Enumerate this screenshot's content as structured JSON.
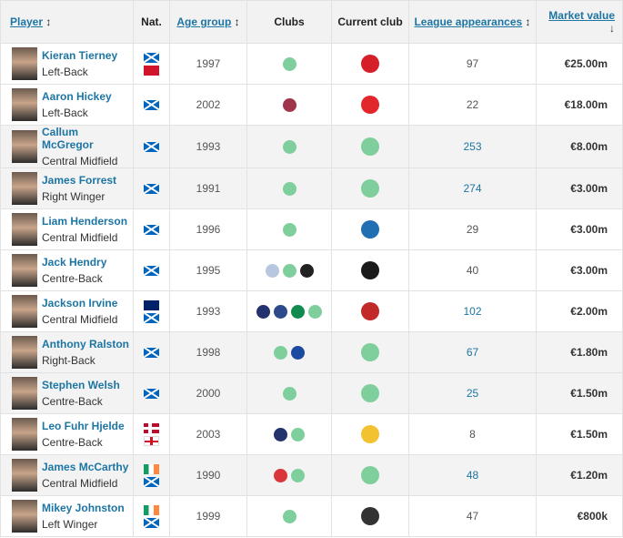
{
  "headers": {
    "player": "Player",
    "nat": "Nat.",
    "age": "Age group",
    "clubs": "Clubs",
    "current": "Current club",
    "apps": "League appearances",
    "value": "Market value",
    "sort_both": "↕",
    "sort_down": "↓"
  },
  "colors": {
    "link": "#1d75a3",
    "celtic": "#2e9e5b"
  },
  "rows": [
    {
      "name": "Kieran Tierney",
      "pos": "Left-Back",
      "flags": [
        "sco",
        "imn"
      ],
      "year": "1997",
      "clubs": [
        "#7fcf9c"
      ],
      "current": "#d5202a",
      "apps": "97",
      "value": "€25.00m",
      "hl": false,
      "blue": false
    },
    {
      "name": "Aaron Hickey",
      "pos": "Left-Back",
      "flags": [
        "sco"
      ],
      "year": "2002",
      "clubs": [
        "#a0344a"
      ],
      "current": "#e3262b",
      "apps": "22",
      "value": "€18.00m",
      "hl": false,
      "blue": false
    },
    {
      "name": "Callum McGregor",
      "pos": "Central Midfield",
      "flags": [
        "sco"
      ],
      "year": "1993",
      "clubs": [
        "#7fcf9c"
      ],
      "current": "#7fcf9c",
      "apps": "253",
      "value": "€8.00m",
      "hl": true,
      "blue": true
    },
    {
      "name": "James Forrest",
      "pos": "Right Winger",
      "flags": [
        "sco"
      ],
      "year": "1991",
      "clubs": [
        "#7fcf9c"
      ],
      "current": "#7fcf9c",
      "apps": "274",
      "value": "€3.00m",
      "hl": true,
      "blue": true
    },
    {
      "name": "Liam Henderson",
      "pos": "Central Midfield",
      "flags": [
        "sco"
      ],
      "year": "1996",
      "clubs": [
        "#7fcf9c"
      ],
      "current": "#1f6fb2",
      "apps": "29",
      "value": "€3.00m",
      "hl": false,
      "blue": false
    },
    {
      "name": "Jack Hendry",
      "pos": "Centre-Back",
      "flags": [
        "sco"
      ],
      "year": "1995",
      "clubs": [
        "#b9c6e0",
        "#7fcf9c",
        "#222222"
      ],
      "current": "#1b1b1b",
      "apps": "40",
      "value": "€3.00m",
      "hl": false,
      "blue": false
    },
    {
      "name": "Jackson Irvine",
      "pos": "Central Midfield",
      "flags": [
        "aus",
        "sco"
      ],
      "year": "1993",
      "clubs": [
        "#24326e",
        "#2c4a8c",
        "#118a4d",
        "#7fcf9c"
      ],
      "current": "#c22a2a",
      "apps": "102",
      "value": "€2.00m",
      "hl": false,
      "blue": true
    },
    {
      "name": "Anthony Ralston",
      "pos": "Right-Back",
      "flags": [
        "sco"
      ],
      "year": "1998",
      "clubs": [
        "#7fcf9c",
        "#1b4aa0"
      ],
      "current": "#7fcf9c",
      "apps": "67",
      "value": "€1.80m",
      "hl": true,
      "blue": true
    },
    {
      "name": "Stephen Welsh",
      "pos": "Centre-Back",
      "flags": [
        "sco"
      ],
      "year": "2000",
      "clubs": [
        "#7fcf9c"
      ],
      "current": "#7fcf9c",
      "apps": "25",
      "value": "€1.50m",
      "hl": true,
      "blue": true
    },
    {
      "name": "Leo Fuhr Hjelde",
      "pos": "Centre-Back",
      "flags": [
        "nor",
        "eng"
      ],
      "year": "2003",
      "clubs": [
        "#24326e",
        "#7fcf9c"
      ],
      "current": "#f2c230",
      "apps": "8",
      "value": "€1.50m",
      "hl": false,
      "blue": false
    },
    {
      "name": "James McCarthy",
      "pos": "Central Midfield",
      "flags": [
        "irl",
        "sco"
      ],
      "year": "1990",
      "clubs": [
        "#d9353a",
        "#7fcf9c"
      ],
      "current": "#7fcf9c",
      "apps": "48",
      "value": "€1.20m",
      "hl": true,
      "blue": true
    },
    {
      "name": "Mikey Johnston",
      "pos": "Left Winger",
      "flags": [
        "irl",
        "sco"
      ],
      "year": "1999",
      "clubs": [
        "#7fcf9c"
      ],
      "current": "#333333",
      "apps": "47",
      "value": "€800k",
      "hl": false,
      "blue": false
    }
  ]
}
